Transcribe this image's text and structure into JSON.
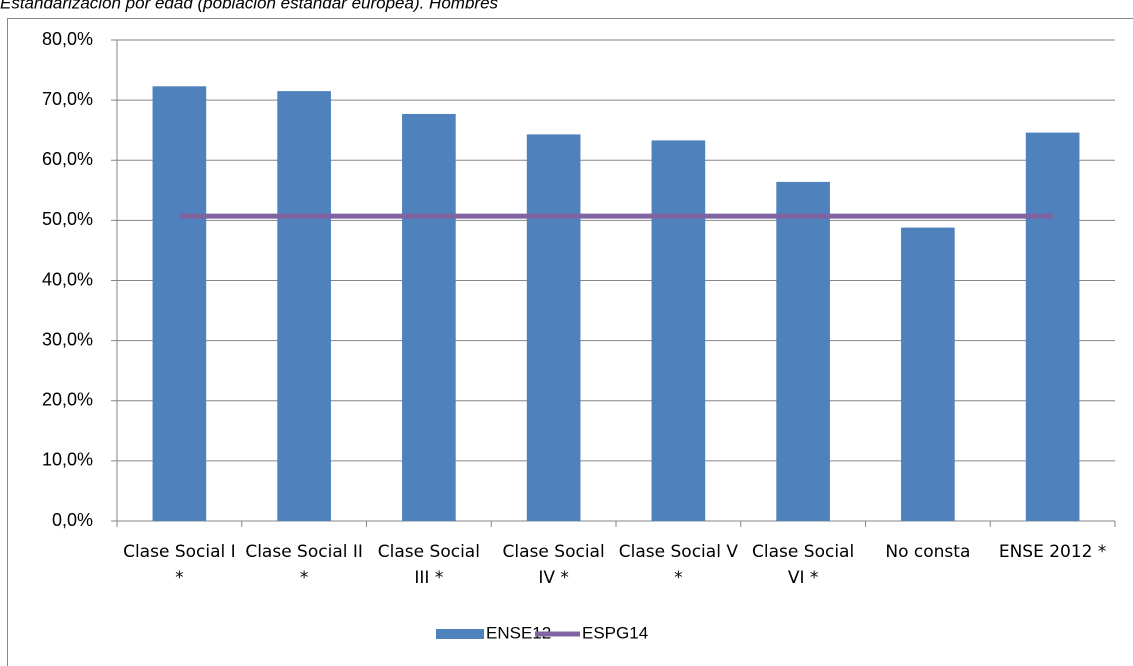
{
  "chart_data": {
    "type": "bar_line",
    "title": "Estandarización por edad (población estándar europea). Hombres",
    "categories": [
      "Clase Social I *",
      "Clase Social II *",
      "Clase Social III *",
      "Clase Social IV *",
      "Clase Social V *",
      "Clase Social VI *",
      "No consta",
      "ENSE 2012 *"
    ],
    "series": [
      {
        "name": "ENSE12",
        "type": "bar",
        "color": "#4f81bd",
        "values": [
          72.3,
          71.5,
          67.7,
          64.3,
          63.3,
          56.4,
          48.8,
          64.6
        ]
      },
      {
        "name": "ESPG14",
        "type": "line",
        "color": "#8064a2",
        "values": [
          50.7,
          50.7,
          50.7,
          50.7,
          50.7,
          50.7,
          50.7,
          50.7
        ]
      }
    ],
    "ylim": [
      0,
      80
    ],
    "yticks": [
      {
        "value": 0,
        "label": "0,0%"
      },
      {
        "value": 10,
        "label": "10,0%"
      },
      {
        "value": 20,
        "label": "20,0%"
      },
      {
        "value": 30,
        "label": "30,0%"
      },
      {
        "value": 40,
        "label": "40,0%"
      },
      {
        "value": 50,
        "label": "50,0%"
      },
      {
        "value": 60,
        "label": "60,0%"
      },
      {
        "value": 70,
        "label": "70,0%"
      },
      {
        "value": 80,
        "label": "80,0%"
      }
    ],
    "grid": true,
    "legend": "bottom"
  }
}
